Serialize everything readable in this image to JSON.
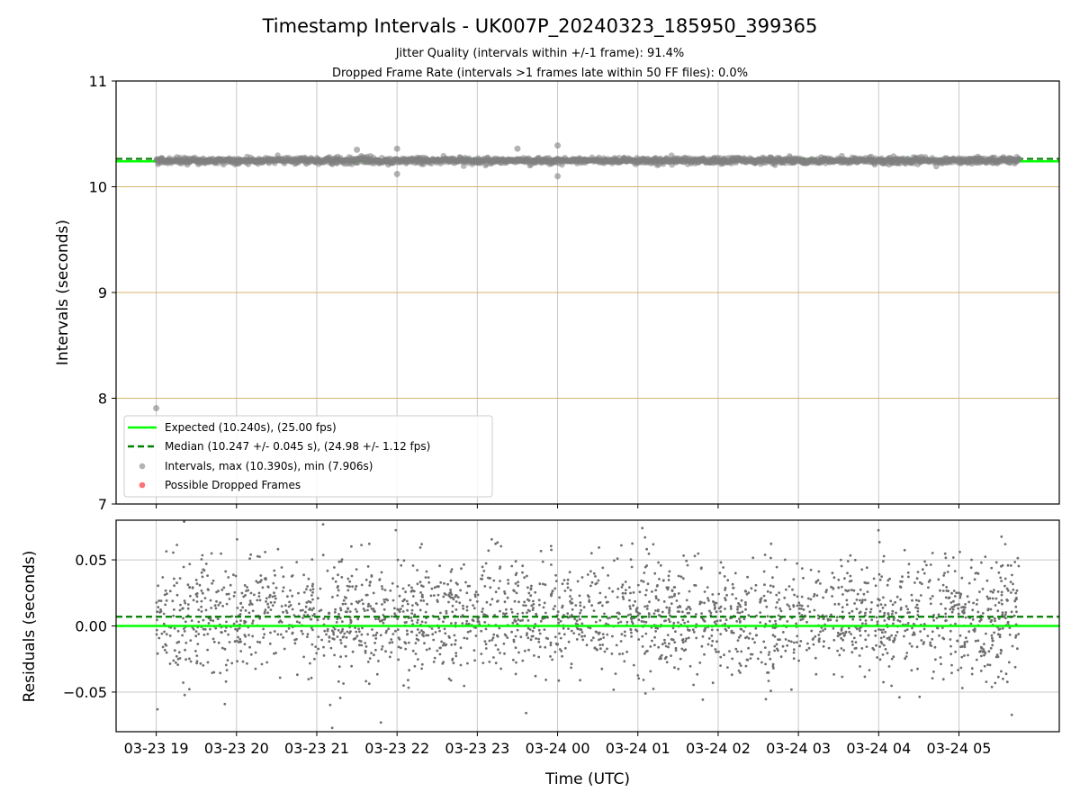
{
  "chart_data": [
    {
      "type": "scatter",
      "panel": "intervals",
      "title": "Timestamp Intervals - UK007P_20240323_185950_399365",
      "subtitle_lines": [
        "Jitter Quality (intervals within +/-1 frame): 91.4%",
        "Dropped Frame Rate (intervals >1 frames late within 50 FF files): 0.0%"
      ],
      "ylabel": "Intervals (seconds)",
      "xlabel": "",
      "ylim": [
        7,
        11
      ],
      "yticks": [
        7,
        8,
        9,
        10,
        11
      ],
      "ytick_labels": [
        "7",
        "8",
        "9",
        "10",
        "11"
      ],
      "x_range": [
        "2024-03-23 18:30",
        "2024-03-24 06:15"
      ],
      "data_range": [
        "2024-03-23 19:00",
        "2024-03-24 05:45"
      ],
      "grid": true,
      "reference_lines": {
        "expected": 10.24,
        "median": 10.247
      },
      "frame_lines": [
        8.0,
        9.0,
        10.0
      ],
      "series": [
        {
          "name": "Expected (10.240s), (25.00 fps)",
          "kind": "line",
          "value": 10.24
        },
        {
          "name": "Median (10.247 +/- 0.045 s), (24.98 +/- 1.12 fps)",
          "kind": "dashed-line",
          "value": 10.247
        },
        {
          "name": "Intervals, max (10.390s), min (7.906s)",
          "kind": "scatter",
          "typical_center": 10.247,
          "typical_spread": 0.035,
          "notable_points": [
            {
              "x": "2024-03-23 19:00",
              "y": 7.906
            },
            {
              "x": "2024-03-23 21:30",
              "y": 10.35
            },
            {
              "x": "2024-03-23 22:00",
              "y": 10.36
            },
            {
              "x": "2024-03-23 22:00",
              "y": 10.12
            },
            {
              "x": "2024-03-23 23:30",
              "y": 10.36
            },
            {
              "x": "2024-03-24 00:00",
              "y": 10.39
            },
            {
              "x": "2024-03-24 00:00",
              "y": 10.1
            }
          ]
        },
        {
          "name": "Possible Dropped Frames",
          "kind": "scatter",
          "points": []
        }
      ],
      "legend": "lower-left",
      "colors": {
        "expected": "#00ff00",
        "median": "#008000",
        "intervals": "#808080",
        "dropped": "#ff0000",
        "frame_lines": "#d4b36f",
        "grid": "#c8c8c8"
      }
    },
    {
      "type": "scatter",
      "panel": "residuals",
      "ylabel": "Residuals (seconds)",
      "xlabel": "Time (UTC)",
      "ylim": [
        -0.08,
        0.08
      ],
      "yticks": [
        -0.05,
        0.0,
        0.05
      ],
      "ytick_labels": [
        "−0.05",
        "0.00",
        "0.05"
      ],
      "x_range": [
        "2024-03-23 18:30",
        "2024-03-24 06:15"
      ],
      "xticks": [
        "2024-03-23 19:00",
        "2024-03-23 20:00",
        "2024-03-23 21:00",
        "2024-03-23 22:00",
        "2024-03-23 23:00",
        "2024-03-24 00:00",
        "2024-03-24 01:00",
        "2024-03-24 02:00",
        "2024-03-24 03:00",
        "2024-03-24 04:00",
        "2024-03-24 05:00"
      ],
      "xtick_labels": [
        "03-23 19",
        "03-23 20",
        "03-23 21",
        "03-23 22",
        "03-23 23",
        "03-24 00",
        "03-24 01",
        "03-24 02",
        "03-24 03",
        "03-24 04",
        "03-24 05"
      ],
      "grid": true,
      "reference_lines": {
        "zero": 0.0,
        "median_offset": 0.007
      },
      "residual_spread": 0.022,
      "point_count": 2400,
      "colors": {
        "points": "#6e6e6e",
        "zero": "#00ff00",
        "median": "#008000"
      }
    }
  ]
}
